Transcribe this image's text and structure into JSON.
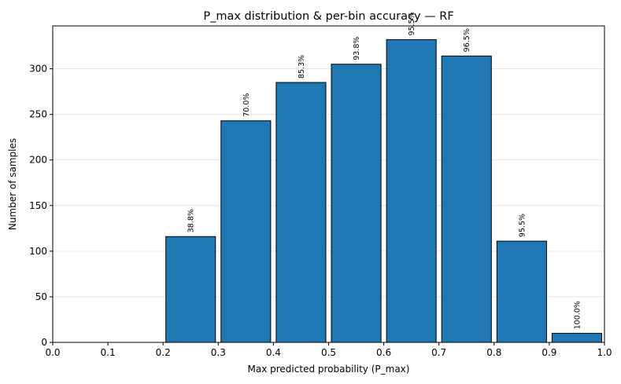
{
  "chart_data": {
    "type": "bar",
    "title": "P_max distribution & per-bin accuracy — RF",
    "xlabel": "Max predicted probability (P_max)",
    "ylabel": "Number of samples",
    "xlim": [
      0.0,
      1.0
    ],
    "ylim": [
      0,
      347
    ],
    "xticks": [
      "0.0",
      "0.1",
      "0.2",
      "0.3",
      "0.4",
      "0.5",
      "0.6",
      "0.7",
      "0.8",
      "0.9",
      "1.0"
    ],
    "yticks": [
      0,
      50,
      100,
      150,
      200,
      250,
      300
    ],
    "grid": "y",
    "bin_width": 0.1,
    "bar_fill_fraction": 0.9,
    "bars": [
      {
        "bin_start": 0.2,
        "bin_end": 0.3,
        "count": 116,
        "accuracy_label": "38.8%"
      },
      {
        "bin_start": 0.3,
        "bin_end": 0.4,
        "count": 243,
        "accuracy_label": "70.0%"
      },
      {
        "bin_start": 0.4,
        "bin_end": 0.5,
        "count": 285,
        "accuracy_label": "85.3%"
      },
      {
        "bin_start": 0.5,
        "bin_end": 0.6,
        "count": 305,
        "accuracy_label": "93.8%"
      },
      {
        "bin_start": 0.6,
        "bin_end": 0.7,
        "count": 332,
        "accuracy_label": "95.5%"
      },
      {
        "bin_start": 0.7,
        "bin_end": 0.8,
        "count": 314,
        "accuracy_label": "96.5%"
      },
      {
        "bin_start": 0.8,
        "bin_end": 0.9,
        "count": 111,
        "accuracy_label": "95.5%"
      },
      {
        "bin_start": 0.9,
        "bin_end": 1.0,
        "count": 10,
        "accuracy_label": "100.0%"
      }
    ],
    "colors": {
      "bar_fill": "#1f77b4",
      "bar_edge": "#000000",
      "grid": "#e6e6e6"
    }
  }
}
